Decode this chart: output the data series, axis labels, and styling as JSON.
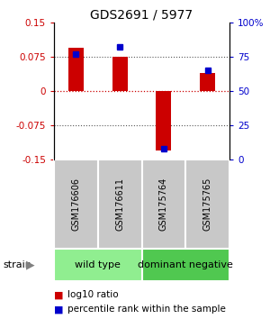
{
  "title": "GDS2691 / 5977",
  "samples": [
    "GSM176606",
    "GSM176611",
    "GSM175764",
    "GSM175765"
  ],
  "log10_ratios": [
    0.095,
    0.075,
    -0.13,
    0.04
  ],
  "percentile_ranks": [
    77,
    82,
    8,
    65
  ],
  "groups": [
    {
      "label": "wild type",
      "samples": [
        0,
        1
      ],
      "color": "#90EE90"
    },
    {
      "label": "dominant negative",
      "samples": [
        2,
        3
      ],
      "color": "#50C850"
    }
  ],
  "ylim": [
    -0.15,
    0.15
  ],
  "y2lim": [
    0,
    100
  ],
  "yticks_left": [
    -0.15,
    -0.075,
    0,
    0.075,
    0.15
  ],
  "yticks_left_labels": [
    "-0.15",
    "-0.075",
    "0",
    "0.075",
    "0.15"
  ],
  "yticks_right": [
    0,
    25,
    50,
    75,
    100
  ],
  "yticks_right_labels": [
    "0",
    "25",
    "50",
    "75",
    "100%"
  ],
  "bar_color": "#CC0000",
  "dot_color": "#0000CC",
  "bar_width": 0.35,
  "hline_zero_color": "#CC0000",
  "hline_dotted_color": "#555555",
  "title_fontsize": 10,
  "tick_fontsize": 7.5,
  "sample_fontsize": 7,
  "group_label_fontsize": 8,
  "legend_fontsize": 7.5,
  "sample_box_color": "#c8c8c8",
  "background_color": "#ffffff"
}
